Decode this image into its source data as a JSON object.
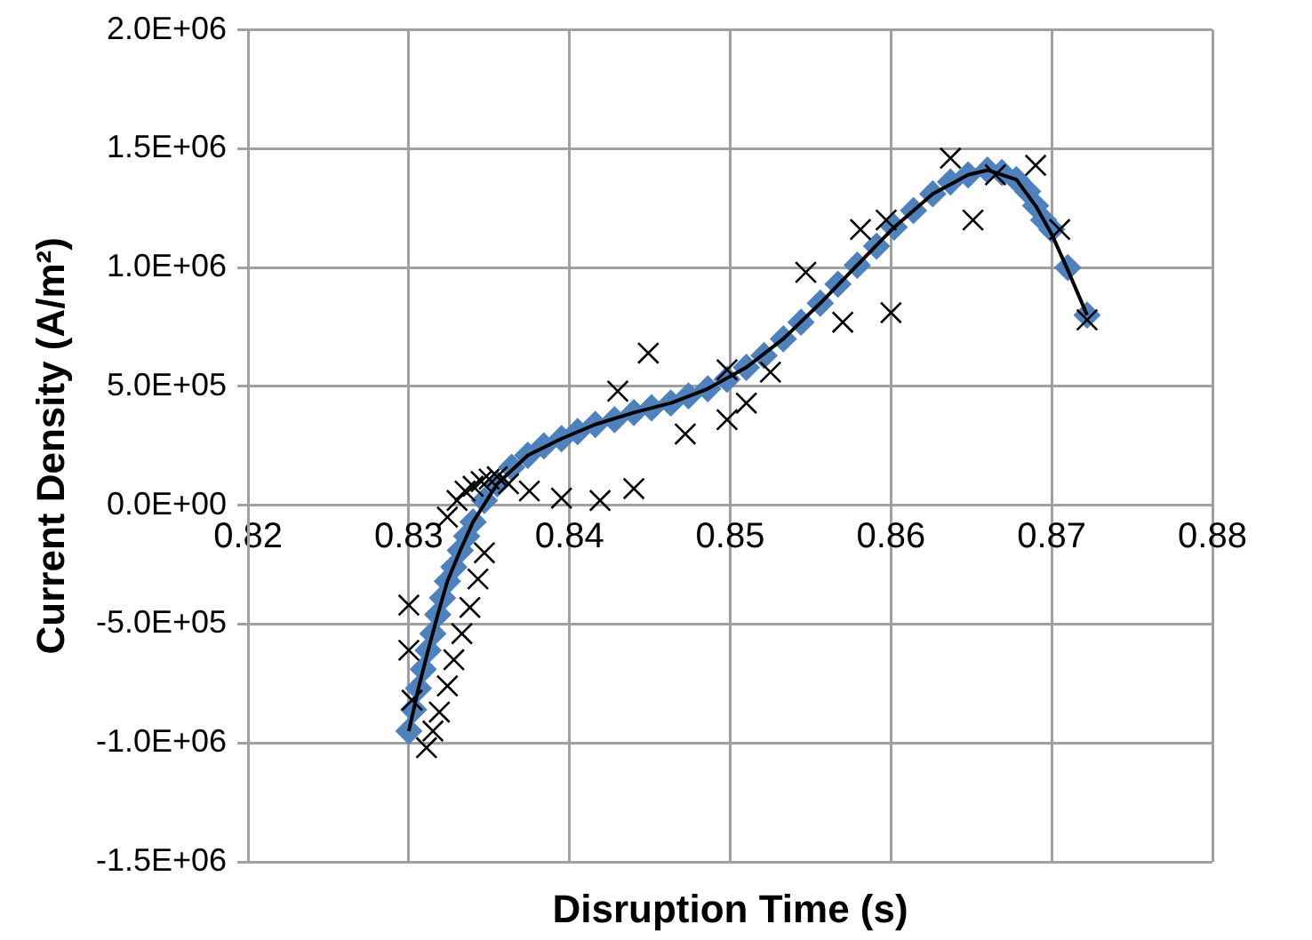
{
  "chart_data": {
    "type": "scatter",
    "xlabel": "Disruption Time (s)",
    "ylabel": "Current Density (A/m²)",
    "xlim": [
      0.82,
      0.88
    ],
    "xticks": [
      0.82,
      0.83,
      0.84,
      0.85,
      0.86,
      0.87,
      0.88
    ],
    "ylim": [
      -1500000,
      2000000
    ],
    "yticks": [
      {
        "value": -1500000,
        "label": "-1.5E+06"
      },
      {
        "value": -1000000,
        "label": "-1.0E+06"
      },
      {
        "value": -500000,
        "label": "-5.0E+05"
      },
      {
        "value": 0,
        "label": "0.0E+00"
      },
      {
        "value": 500000,
        "label": "5.0E+05"
      },
      {
        "value": 1000000,
        "label": "1.0E+06"
      },
      {
        "value": 1500000,
        "label": "1.5E+06"
      },
      {
        "value": 2000000,
        "label": "2.0E+06"
      }
    ],
    "grid": true,
    "legend": false,
    "series": [
      {
        "marker": "cross",
        "color": "#000000",
        "x": [
          0.83,
          0.83,
          0.8302,
          0.8311,
          0.8315,
          0.8319,
          0.8324,
          0.8328,
          0.8333,
          0.8338,
          0.8343,
          0.8347,
          0.8324,
          0.833,
          0.8335,
          0.834,
          0.8345,
          0.835,
          0.8355,
          0.8362,
          0.8375,
          0.8395,
          0.8419,
          0.844,
          0.843,
          0.8449,
          0.8472,
          0.8498,
          0.851,
          0.8498,
          0.8525,
          0.8547,
          0.857,
          0.86,
          0.8581,
          0.8597,
          0.8637,
          0.8651,
          0.8665,
          0.869,
          0.8705,
          0.8722
        ],
        "values": [
          -420000,
          -610000,
          -820000,
          -1020000,
          -950000,
          -870000,
          -760000,
          -650000,
          -540000,
          -430000,
          -310000,
          -200000,
          -50000,
          20000,
          60000,
          80000,
          100000,
          110000,
          120000,
          90000,
          60000,
          30000,
          20000,
          70000,
          480000,
          640000,
          300000,
          360000,
          430000,
          570000,
          560000,
          980000,
          770000,
          810000,
          1160000,
          1200000,
          1460000,
          1200000,
          1390000,
          1430000,
          1160000,
          780000
        ]
      },
      {
        "marker": "diamond",
        "color": "#4f81bd",
        "x": [
          0.83,
          0.8303,
          0.8306,
          0.8309,
          0.8312,
          0.8315,
          0.8318,
          0.8321,
          0.8324,
          0.8328,
          0.8332,
          0.8336,
          0.834,
          0.8347,
          0.8355,
          0.8364,
          0.8374,
          0.8384,
          0.8395,
          0.8405,
          0.8416,
          0.8428,
          0.844,
          0.8451,
          0.8463,
          0.8474,
          0.8486,
          0.8498,
          0.851,
          0.8521,
          0.8533,
          0.8544,
          0.8556,
          0.8567,
          0.8579,
          0.8591,
          0.8602,
          0.8614,
          0.8626,
          0.8637,
          0.8648,
          0.866,
          0.8669,
          0.8678,
          0.8685,
          0.869,
          0.8695,
          0.87,
          0.871,
          0.8722
        ],
        "values": [
          -950000,
          -860000,
          -770000,
          -690000,
          -610000,
          -540000,
          -460000,
          -390000,
          -320000,
          -260000,
          -190000,
          -130000,
          -70000,
          20000,
          90000,
          160000,
          210000,
          250000,
          280000,
          310000,
          340000,
          360000,
          390000,
          410000,
          430000,
          460000,
          490000,
          530000,
          580000,
          630000,
          700000,
          770000,
          850000,
          930000,
          1010000,
          1090000,
          1170000,
          1240000,
          1310000,
          1360000,
          1390000,
          1410000,
          1400000,
          1370000,
          1320000,
          1260000,
          1200000,
          1160000,
          1000000,
          800000
        ]
      },
      {
        "type": "line",
        "marker": "none",
        "color": "#000000",
        "x": [
          0.83,
          0.8306,
          0.8312,
          0.8318,
          0.8324,
          0.8332,
          0.834,
          0.8355,
          0.8374,
          0.8395,
          0.8416,
          0.844,
          0.8463,
          0.8486,
          0.851,
          0.8533,
          0.8556,
          0.8579,
          0.8602,
          0.8626,
          0.8648,
          0.866,
          0.8678,
          0.869,
          0.87,
          0.871,
          0.8722
        ],
        "values": [
          -950000,
          -770000,
          -610000,
          -460000,
          -320000,
          -190000,
          -70000,
          90000,
          210000,
          280000,
          340000,
          390000,
          430000,
          490000,
          580000,
          700000,
          850000,
          1010000,
          1170000,
          1310000,
          1390000,
          1410000,
          1370000,
          1260000,
          1140000,
          990000,
          800000
        ]
      }
    ]
  }
}
